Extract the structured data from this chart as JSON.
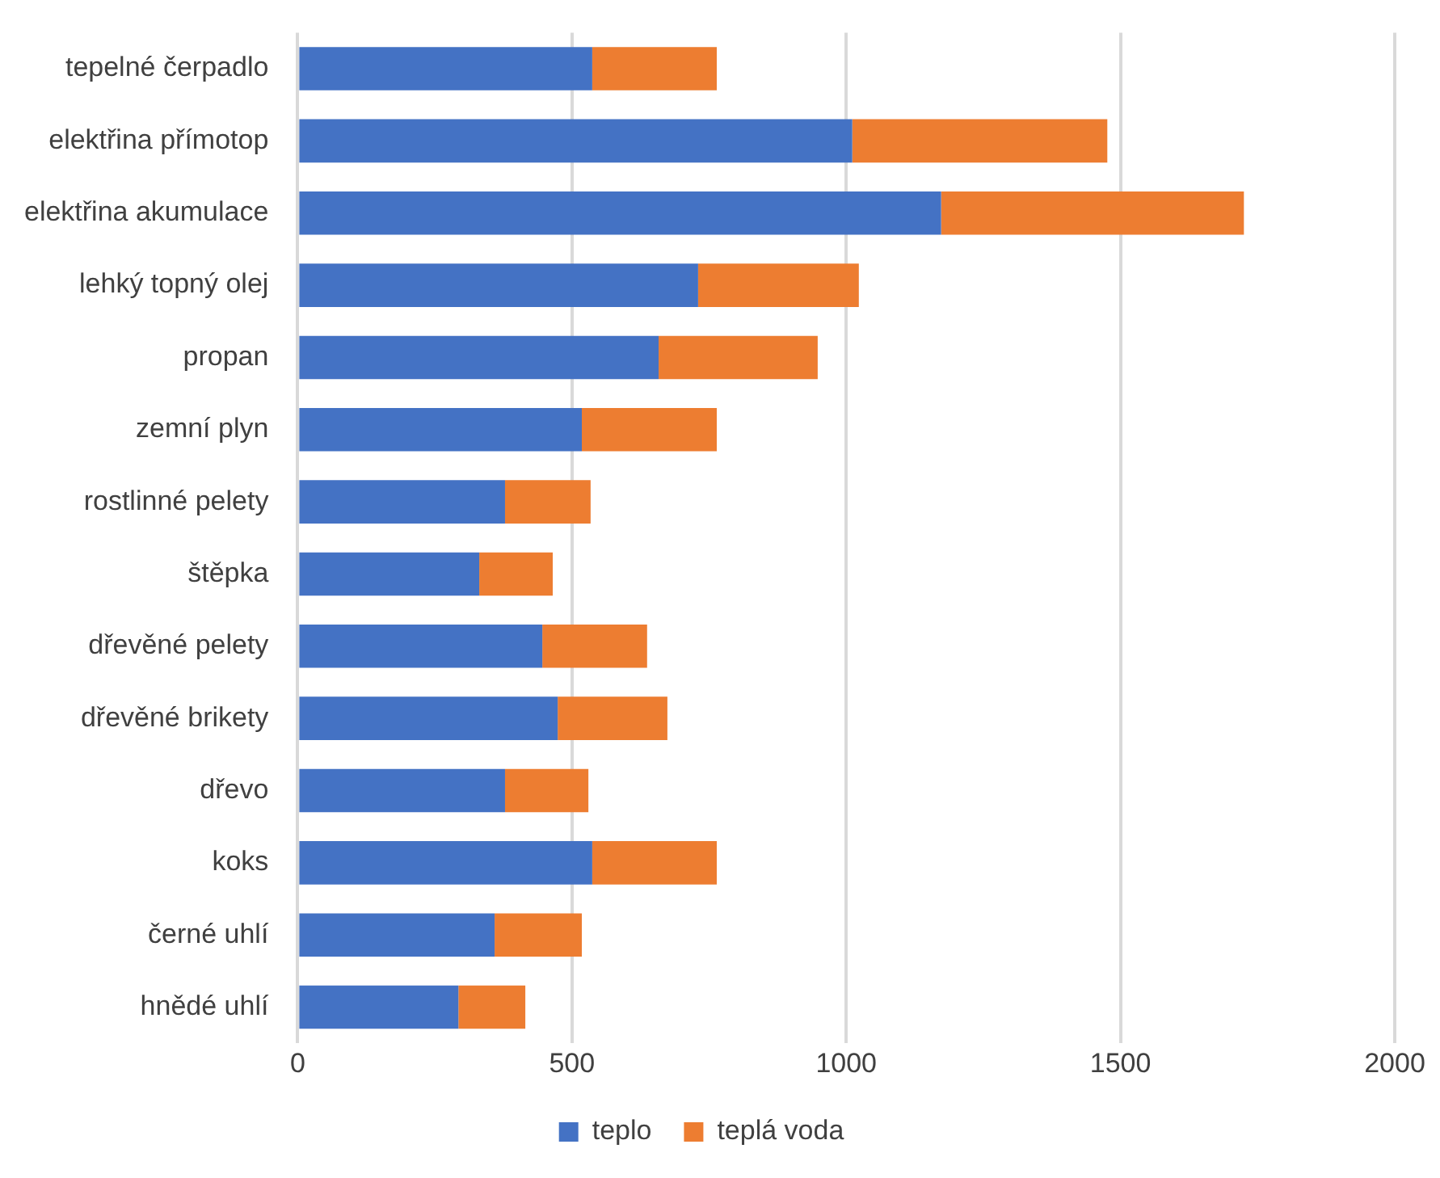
{
  "chart_data": {
    "type": "bar",
    "orientation": "horizontal",
    "stacked": true,
    "categories": [
      "tepelné čerpadlo",
      "elektřina přímotop",
      "elektřina akumulace",
      "lehký topný olej",
      "propan",
      "zemní plyn",
      "rostlinné pelety",
      "štěpka",
      "dřevěné pelety",
      "dřevěné brikety",
      "dřevo",
      "koks",
      "černé uhlí",
      "hnědé uhlí"
    ],
    "series": [
      {
        "name": "teplo",
        "color": "#4472c4",
        "values": [
          537,
          1011,
          1173,
          730,
          658,
          518,
          378,
          331,
          446,
          474,
          378,
          537,
          359,
          293
        ]
      },
      {
        "name": "teplá voda",
        "color": "#ed7d31",
        "values": [
          227,
          465,
          552,
          293,
          290,
          246,
          156,
          134,
          191,
          200,
          152,
          227,
          159,
          122
        ]
      }
    ],
    "xlim": [
      0,
      2000
    ],
    "xticks": [
      0,
      500,
      1000,
      1500,
      2000
    ],
    "grid": "x",
    "legend": "bottom"
  }
}
